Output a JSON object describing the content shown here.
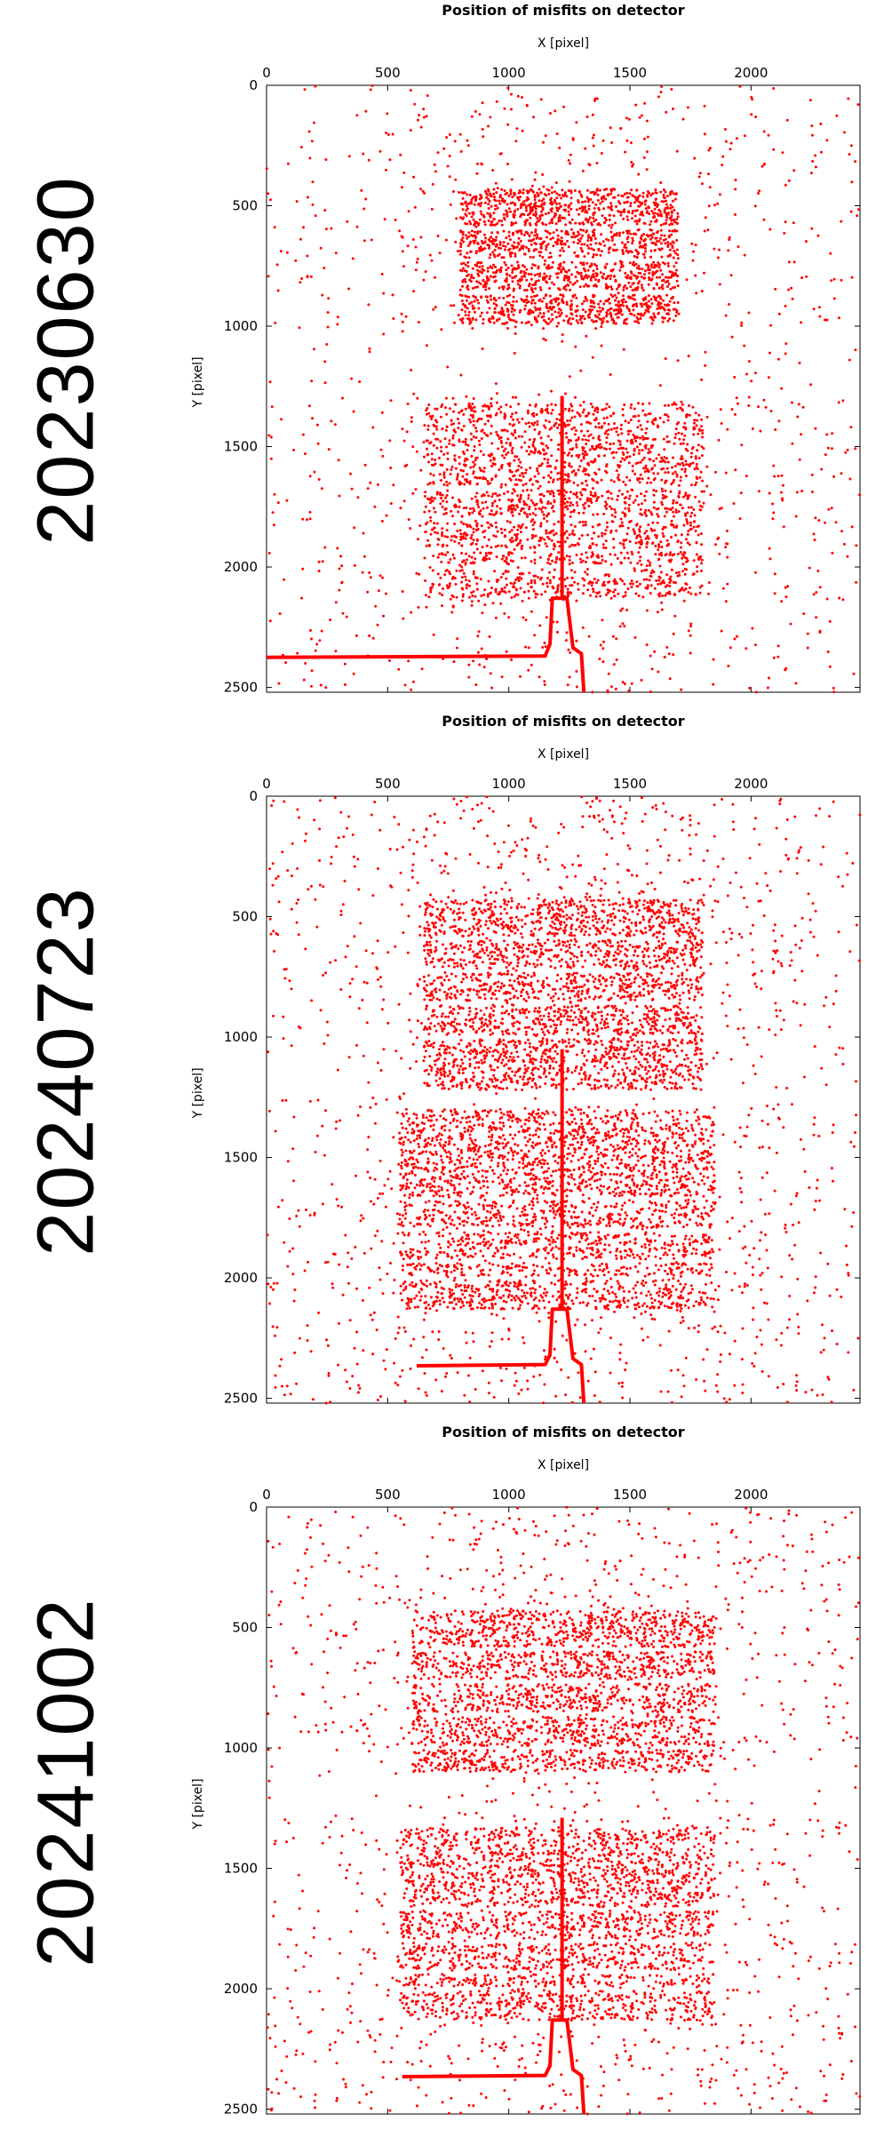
{
  "panels": [
    {
      "date": "20230630"
    },
    {
      "date": "20240723"
    },
    {
      "date": "20241002"
    }
  ],
  "chart_data": [
    {
      "type": "scatter",
      "title": "Position of misfits on detector",
      "xlabel": "X [pixel]",
      "ylabel": "Y [pixel]",
      "xlim": [
        0,
        2450
      ],
      "ylim": [
        2520,
        0
      ],
      "x_ticks": [
        0,
        500,
        1000,
        1500,
        2000
      ],
      "y_ticks": [
        0,
        500,
        1000,
        1500,
        2000,
        2500
      ],
      "x_tick_position": "top",
      "grid": false,
      "marker_color": "#ff0000",
      "point_density": 0.95,
      "central_vertical_line": {
        "x": 1220,
        "y_from": 1290,
        "y_to": 2130
      },
      "lower_trace": [
        [
          0,
          2375
        ],
        [
          1150,
          2370
        ],
        [
          1170,
          2320
        ],
        [
          1180,
          2130
        ],
        [
          1240,
          2130
        ],
        [
          1265,
          2335
        ],
        [
          1300,
          2360
        ],
        [
          1310,
          2520
        ]
      ],
      "horizontal_gaps": [
        590,
        725,
        860,
        1000,
        1250,
        1670,
        1800,
        1930,
        2000
      ],
      "clusters": [
        {
          "name": "",
          "x": [
            800,
            1700
          ],
          "y": [
            430,
            1010
          ]
        },
        {
          "name": "",
          "x": [
            650,
            1800
          ],
          "y": [
            1320,
            2130
          ]
        }
      ]
    },
    {
      "type": "scatter",
      "title": "Position of misfits on detector",
      "xlabel": "X [pixel]",
      "ylabel": "Y [pixel]",
      "xlim": [
        0,
        2450
      ],
      "ylim": [
        2520,
        0
      ],
      "x_ticks": [
        0,
        500,
        1000,
        1500,
        2000
      ],
      "y_ticks": [
        0,
        500,
        1000,
        1500,
        2000,
        2500
      ],
      "x_tick_position": "top",
      "grid": false,
      "marker_color": "#ff0000",
      "point_density": 1.25,
      "central_vertical_line": {
        "x": 1220,
        "y_from": 1050,
        "y_to": 2130
      },
      "lower_trace": [
        [
          620,
          2365
        ],
        [
          1150,
          2360
        ],
        [
          1170,
          2320
        ],
        [
          1180,
          2130
        ],
        [
          1240,
          2130
        ],
        [
          1265,
          2335
        ],
        [
          1300,
          2360
        ],
        [
          1310,
          2520
        ]
      ],
      "horizontal_gaps": [
        590,
        725,
        860,
        1000,
        1250,
        1670,
        1800,
        1930,
        2000
      ],
      "clusters": [
        {
          "name": "",
          "x": [
            650,
            1800
          ],
          "y": [
            430,
            1220
          ]
        },
        {
          "name": "",
          "x": [
            550,
            1850
          ],
          "y": [
            1300,
            2130
          ]
        }
      ]
    },
    {
      "type": "scatter",
      "title": "Position of misfits on detector",
      "xlabel": "X [pixel]",
      "ylabel": "Y [pixel]",
      "xlim": [
        0,
        2450
      ],
      "ylim": [
        2520,
        0
      ],
      "x_ticks": [
        0,
        500,
        1000,
        1500,
        2000
      ],
      "y_ticks": [
        0,
        500,
        1000,
        1500,
        2000,
        2500
      ],
      "x_tick_position": "top",
      "grid": false,
      "marker_color": "#ff0000",
      "point_density": 1.1,
      "central_vertical_line": {
        "x": 1220,
        "y_from": 1290,
        "y_to": 2130
      },
      "lower_trace": [
        [
          560,
          2365
        ],
        [
          1150,
          2360
        ],
        [
          1170,
          2320
        ],
        [
          1180,
          2130
        ],
        [
          1240,
          2130
        ],
        [
          1265,
          2335
        ],
        [
          1300,
          2360
        ],
        [
          1310,
          2520
        ]
      ],
      "horizontal_gaps": [
        590,
        725,
        860,
        1000,
        1250,
        1670,
        1800,
        1930,
        2000
      ],
      "clusters": [
        {
          "name": "",
          "x": [
            600,
            1850
          ],
          "y": [
            430,
            1100
          ]
        },
        {
          "name": "",
          "x": [
            550,
            1850
          ],
          "y": [
            1330,
            2130
          ]
        }
      ]
    }
  ]
}
